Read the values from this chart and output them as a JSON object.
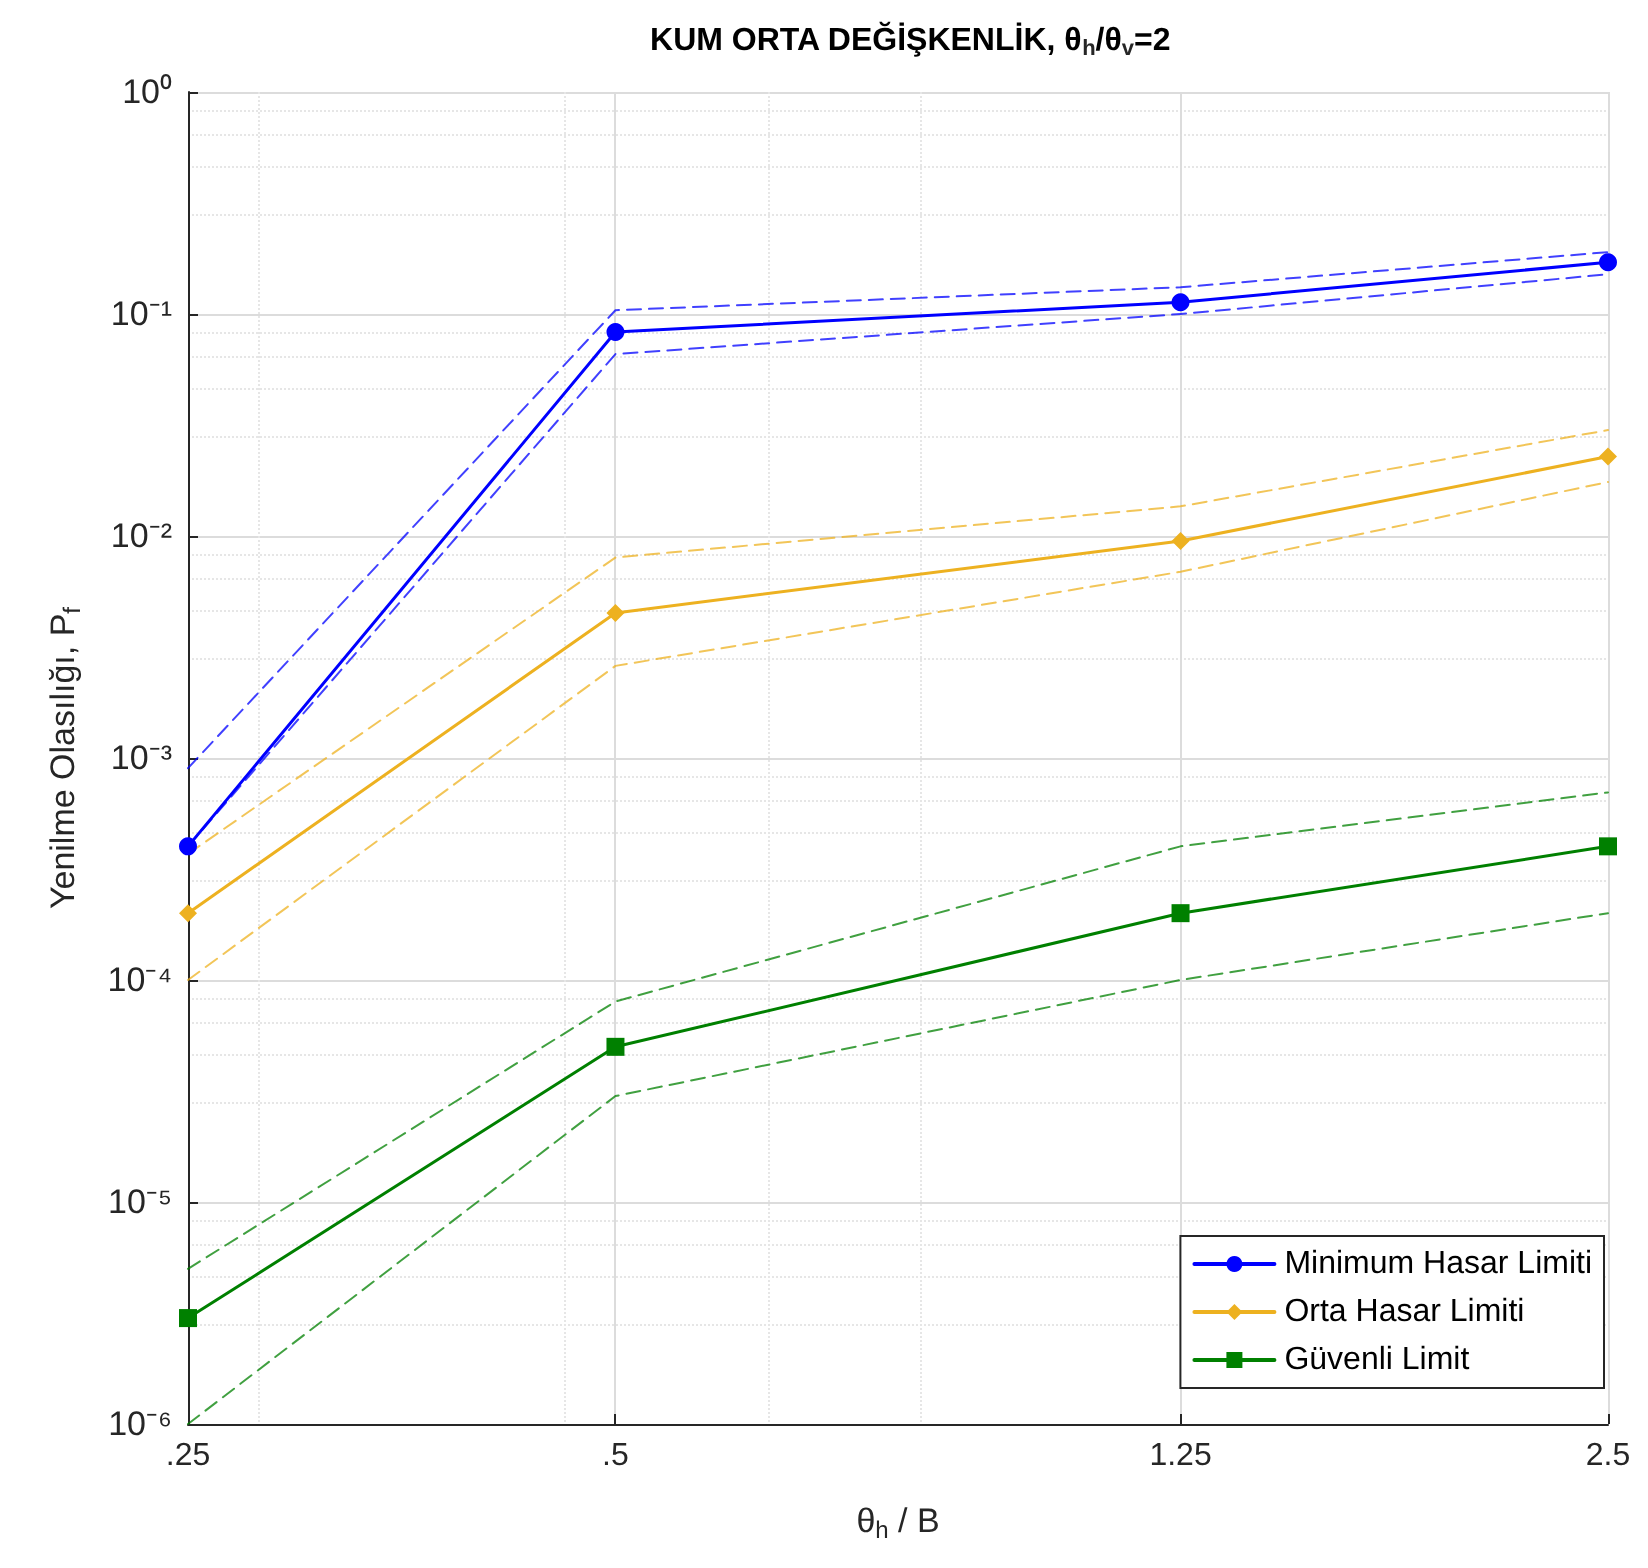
{
  "chart_data": {
    "type": "line",
    "title": "KUM ORTA DEĞİŞKENLİK, θ$_{h}$/θ$_{v}$=2",
    "xlabel": "θ$_{h}$ / B",
    "ylabel": "Yenilme Olasılığı, P$_{f}$",
    "x": [
      0.25,
      0.5,
      1.25,
      2.5
    ],
    "series": [
      {
        "color": "#0000ff",
        "marker": "none",
        "line_style": "dashed",
        "values": [
          0.0004,
          0.066,
          0.1,
          0.151
        ]
      },
      {
        "color": "#0000ff",
        "marker": "none",
        "line_style": "dashed",
        "values": [
          0.0009,
          0.104,
          0.132,
          0.19
        ]
      },
      {
        "color": "#edb120",
        "marker": "none",
        "line_style": "dashed",
        "values": [
          0.0001,
          0.0026,
          0.0069,
          0.0175
        ]
      },
      {
        "color": "#edb120",
        "marker": "none",
        "line_style": "dashed",
        "values": [
          0.00037,
          0.008,
          0.0136,
          0.03
        ]
      },
      {
        "color": "#008000",
        "marker": "none",
        "line_style": "dashed",
        "values": [
          1e-06,
          3e-05,
          0.0001,
          0.0002
        ]
      },
      {
        "color": "#008000",
        "marker": "none",
        "line_style": "dashed",
        "values": [
          5e-06,
          8e-05,
          0.0004,
          0.0007
        ]
      },
      {
        "name": "Minimum Hasar Limiti",
        "color": "#0000ff",
        "marker": "circle",
        "values": [
          0.0004,
          0.083,
          0.113,
          0.171
        ]
      },
      {
        "name": "Orta Hasar Limiti",
        "color": "#edb120",
        "marker": "diamond",
        "values": [
          0.0002,
          0.0045,
          0.0095,
          0.0228
        ]
      },
      {
        "name": "Güvenli Limit",
        "color": "#008000",
        "marker": "square",
        "values": [
          3e-06,
          5e-05,
          0.0002,
          0.0004
        ]
      }
    ],
    "log": "xy",
    "xlim": [
      0.25,
      2.5
    ],
    "xticks": [
      {
        "value": 0.25,
        "label": ".25"
      },
      {
        "value": 0.5,
        "label": ".5"
      },
      1.25,
      2.5
    ],
    "ylim": [
      1e-06,
      1
    ],
    "yticks": [
      {
        "value": 1e-06,
        "label": "10⁻⁶"
      },
      {
        "value": 1e-05,
        "label": "10⁻⁵"
      },
      {
        "value": 0.0001,
        "label": "10⁻⁴"
      },
      {
        "value": 0.001,
        "label": "10⁻³"
      },
      {
        "value": 0.01,
        "label": "10⁻²"
      },
      {
        "value": 0.1,
        "label": "10⁻¹"
      },
      {
        "value": 1,
        "label": "10⁰"
      }
    ],
    "grid": true,
    "legend": "bottom right",
    "line_style": "solid"
  }
}
